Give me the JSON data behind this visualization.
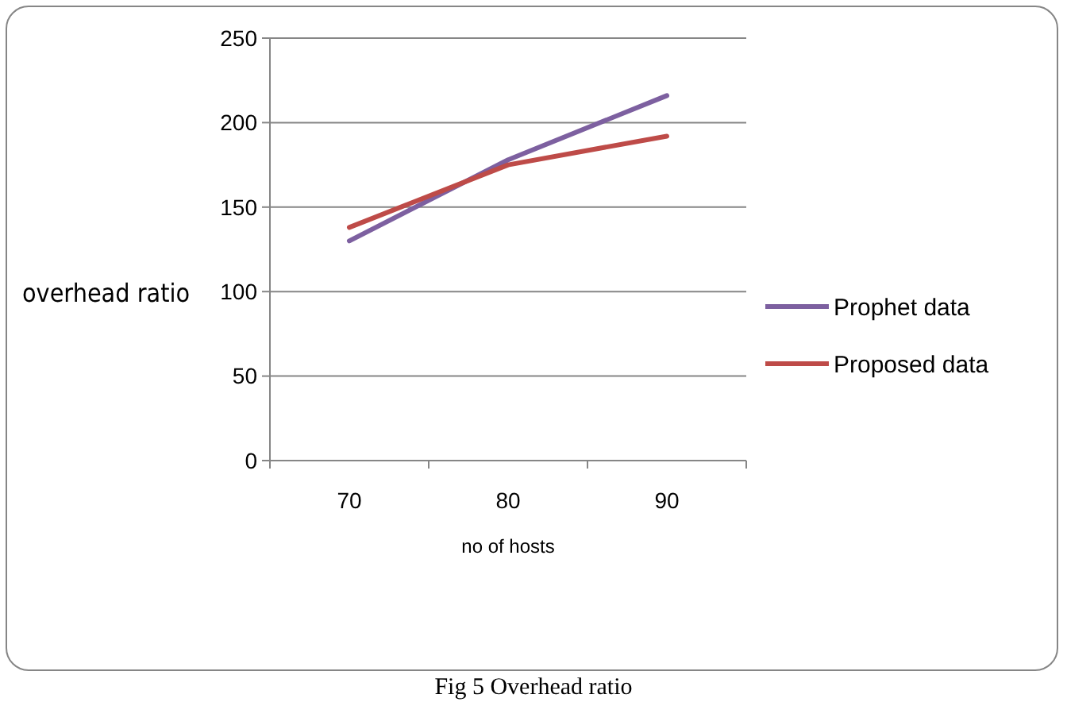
{
  "chart_data": {
    "type": "line",
    "title": "Fig 5 Overhead ratio",
    "xlabel": "no of hosts",
    "ylabel": "overhead ratio",
    "categories": [
      "70",
      "80",
      "90"
    ],
    "series": [
      {
        "name": "Prophet data",
        "color": "#7d60a0",
        "values": [
          130,
          178,
          216
        ]
      },
      {
        "name": "Proposed data",
        "color": "#be4b48",
        "values": [
          138,
          175,
          192
        ]
      }
    ],
    "ylim": [
      0,
      250
    ],
    "yticks": [
      0,
      50,
      100,
      150,
      200,
      250
    ],
    "grid": "y",
    "legend": "right",
    "marker": "none",
    "line_style": "solid"
  }
}
